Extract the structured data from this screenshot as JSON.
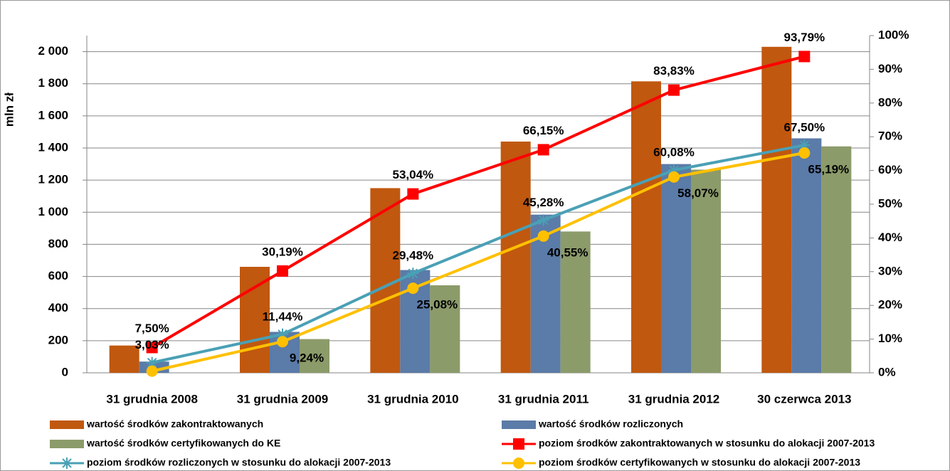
{
  "chart_data": {
    "type": "bar",
    "y_axis_label": "mln zł",
    "categories": [
      "31 grudnia 2008",
      "31 grudnia 2009",
      "31 grudnia 2010",
      "31 grudnia 2011",
      "31 grudnia 2012",
      "30 czerwca 2013"
    ],
    "series": [
      {
        "name": "wartość środków zakontraktowanych",
        "color": "#c0580f",
        "values": [
          170,
          660,
          1150,
          1440,
          1815,
          2030
        ]
      },
      {
        "name": "wartość środków rozliczonych",
        "color": "#5b7ba8",
        "values": [
          70,
          255,
          640,
          985,
          1300,
          1460
        ]
      },
      {
        "name": "wartość środków certyfikowanych do KE",
        "color": "#8c9b6a",
        "values": [
          0,
          210,
          545,
          880,
          1265,
          1410
        ]
      },
      {
        "name": "poziom środków zakontraktowanych w stosunku do alokacji 2007-2013",
        "type": "line",
        "axis": "y2",
        "marker": "square",
        "color": "#ff0000",
        "values": [
          7.5,
          30.19,
          53.04,
          66.15,
          83.83,
          93.79
        ],
        "value_labels": [
          "7,50%",
          "30,19%",
          "53,04%",
          "66,15%",
          "83,83%",
          "93,79%"
        ]
      },
      {
        "name": "poziom środków rozliczonych w stosunku do alokacji 2007-2013",
        "type": "line",
        "axis": "y2",
        "marker": "star",
        "color": "#4aa0b5",
        "values": [
          3.03,
          11.44,
          29.48,
          45.28,
          60.08,
          67.5
        ],
        "value_labels": [
          "3,03%",
          "11,44%",
          "29,48%",
          "45,28%",
          "60,08%",
          "67,50%"
        ]
      },
      {
        "name": "poziom środków certyfikowanych w stosunku do alokacji 2007-2013",
        "type": "line",
        "axis": "y2",
        "marker": "circle",
        "color": "#ffc000",
        "values": [
          0.5,
          9.24,
          25.08,
          40.55,
          58.07,
          65.19
        ],
        "value_labels": [
          null,
          "9,24%",
          "25,08%",
          "40,55%",
          "58,07%",
          "65,19%"
        ]
      }
    ],
    "ylim": [
      0,
      2100
    ],
    "yticks": [
      0,
      200,
      400,
      600,
      800,
      {
        "value": 1000,
        "label": "1 000"
      },
      {
        "value": 1200,
        "label": "1 200"
      },
      {
        "value": 1400,
        "label": "1 400"
      },
      {
        "value": 1600,
        "label": "1 600"
      },
      {
        "value": 1800,
        "label": "1 800"
      },
      {
        "value": 2000,
        "label": "2 000"
      }
    ],
    "y2lim": [
      0,
      100
    ],
    "y2ticks": [
      {
        "value": 0,
        "label": "0%"
      },
      {
        "value": 10,
        "label": "10%"
      },
      {
        "value": 20,
        "label": "20%"
      },
      {
        "value": 30,
        "label": "30%"
      },
      {
        "value": 40,
        "label": "40%"
      },
      {
        "value": 50,
        "label": "50%"
      },
      {
        "value": 60,
        "label": "60%"
      },
      {
        "value": 70,
        "label": "70%"
      },
      {
        "value": 80,
        "label": "80%"
      },
      {
        "value": 90,
        "label": "90%"
      },
      {
        "value": 100,
        "label": "100%"
      }
    ],
    "grid": true,
    "legend": "bottom"
  }
}
